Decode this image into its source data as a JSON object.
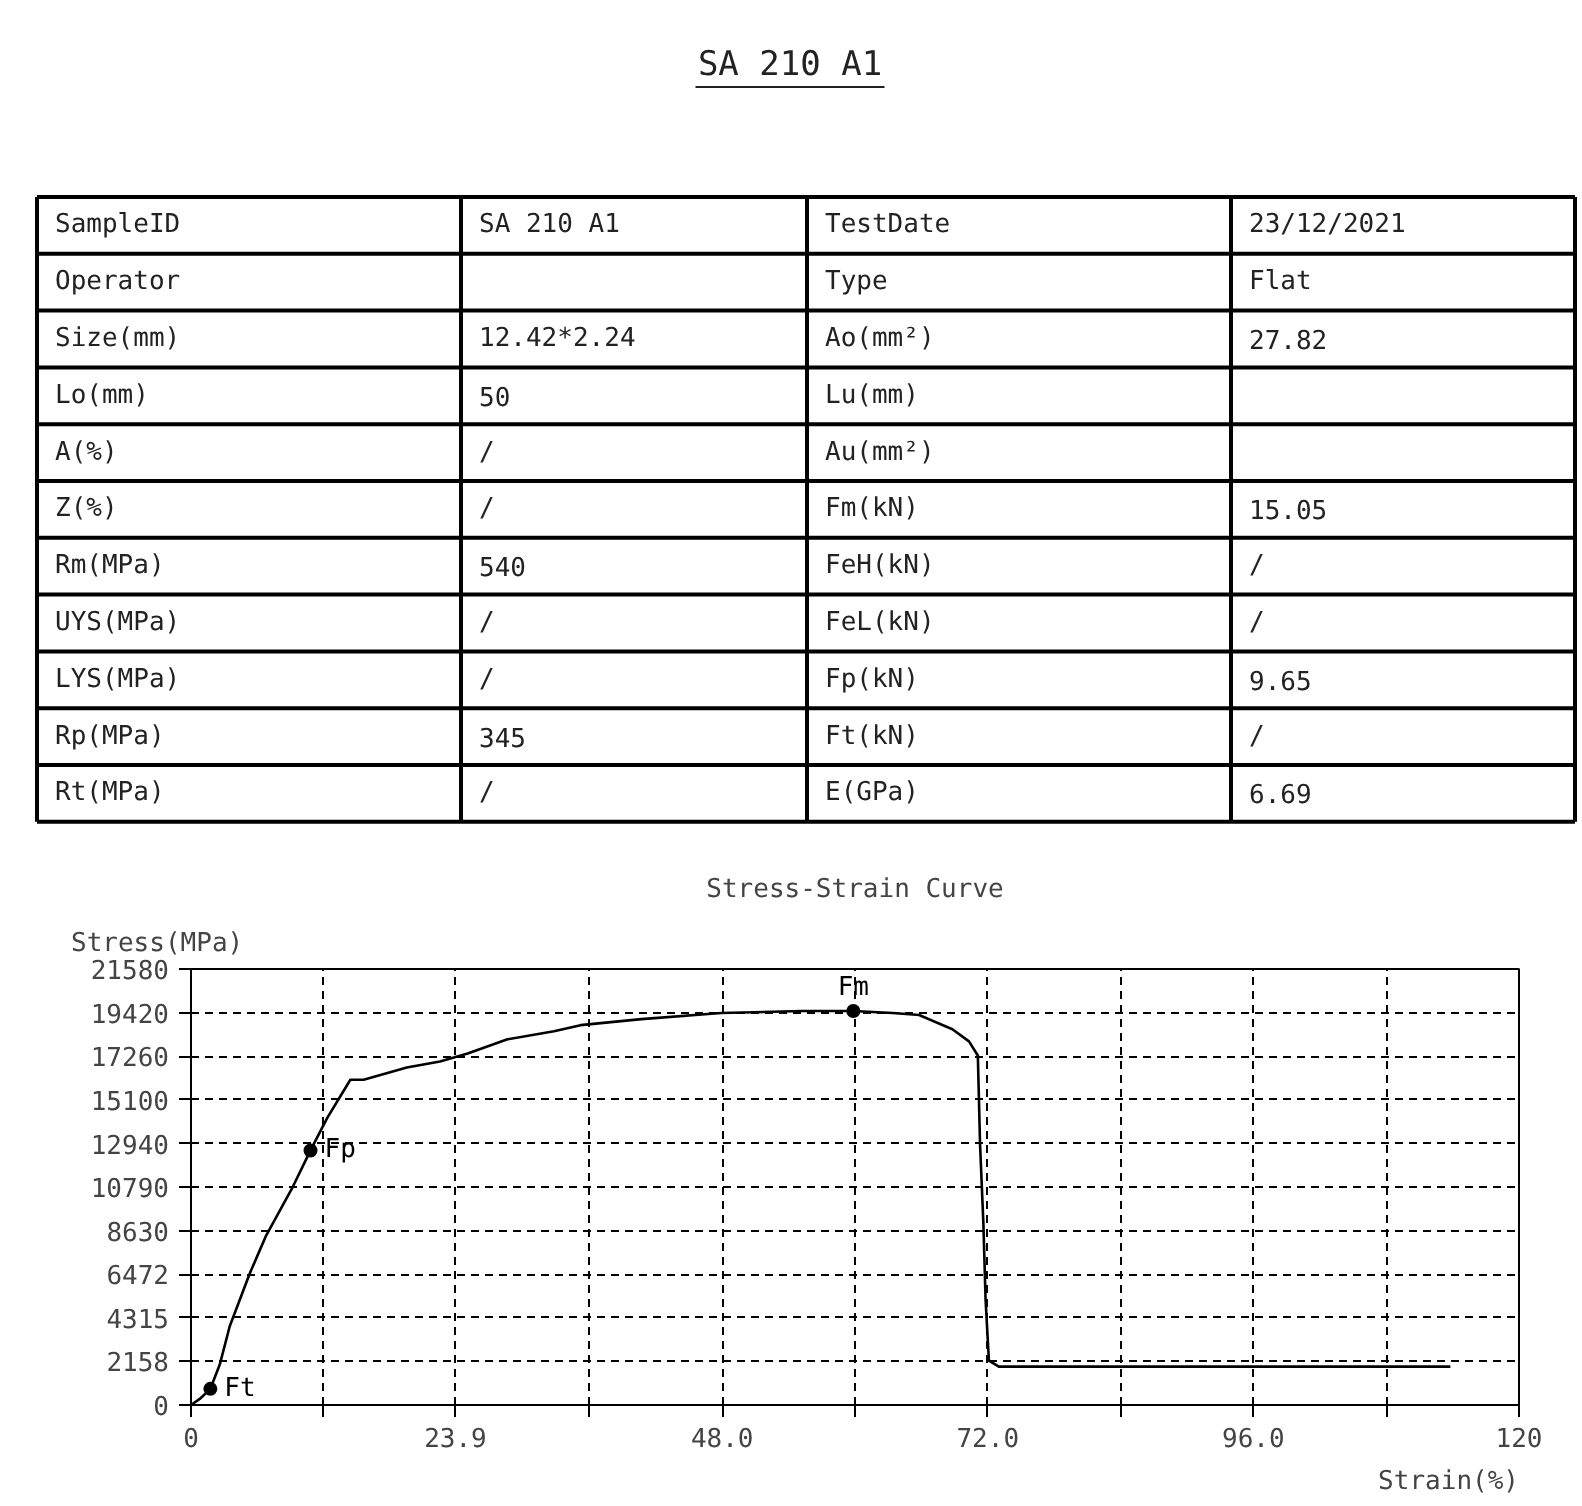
{
  "chart_data": [
    {
      "type": "other",
      "title": "SA 210 A1",
      "annotations": [
        "SampleID",
        "SA 210 A1",
        "TestDate",
        "23/12/2021",
        "Operator",
        null,
        "Type",
        "Flat",
        "Size(mm)",
        "12.42*2.24",
        "Ao(mm²)",
        "27.82",
        "Lo(mm)",
        "50",
        "Lu(mm)",
        null,
        "A(%)",
        "/",
        "Au(mm²)",
        null,
        "Z(%)",
        "/",
        "Fm(kN)",
        "15.05",
        "Rm(MPa)",
        "540",
        "FeH(kN)",
        "/",
        "UYS(MPa)",
        "/",
        "FeL(kN)",
        "/",
        "LYS(MPa)",
        "/",
        "Fp(kN)",
        "9.65",
        "Rp(MPa)",
        "345",
        "Ft(kN)",
        "/",
        "Rt(MPa)",
        "/",
        "E(GPa)",
        "6.69"
      ]
    },
    {
      "type": "line",
      "title": "Stress-Strain Curve",
      "xlabel": "Strain(%)",
      "ylabel": "Stress(MPa)",
      "color": "#000000",
      "line_style": "solid",
      "grid": true,
      "x": [
        0,
        0.79,
        1.75,
        2.6,
        3.5,
        5.3,
        6.8,
        9.2,
        10.8,
        12.3,
        14.4,
        15.6,
        19.5,
        22.5,
        25.0,
        28.6,
        32.8,
        35.2,
        40.7,
        47.9,
        55.2,
        59.85,
        63.4,
        65.8,
        68.8,
        70.3,
        71.1,
        71.3,
        71.6,
        71.8,
        72.1,
        73.0,
        113.8
      ],
      "values": [
        0,
        300,
        800,
        2000,
        3900,
        6500,
        8400,
        10800,
        12600,
        14200,
        16100,
        16100,
        16700,
        17000,
        17400,
        18100,
        18500,
        18800,
        19100,
        19400,
        19500,
        19500,
        19400,
        19300,
        18600,
        18000,
        17300,
        12900,
        9000,
        5200,
        2200,
        1900,
        1900
      ],
      "xlim": [
        0,
        120
      ],
      "ylim": [
        0,
        21580
      ],
      "xticks": [
        0,
        {
          "value": 12,
          "label": null
        },
        23.9,
        {
          "value": 36,
          "label": null
        },
        {
          "value": 48,
          "label": "48.0"
        },
        {
          "value": 60,
          "label": null
        },
        {
          "value": 72,
          "label": "72.0"
        },
        {
          "value": 84,
          "label": null
        },
        {
          "value": 96,
          "label": "96.0"
        },
        {
          "value": 108,
          "label": null
        },
        120
      ],
      "yticks": [
        0,
        2158,
        4315,
        6472,
        8630,
        10790,
        12940,
        15100,
        17260,
        19420,
        21580
      ],
      "annotations": [
        {
          "text": "Ft",
          "x": 1.75,
          "y": 800
        },
        {
          "text": "Fp",
          "x": 10.8,
          "y": 12600
        },
        {
          "text": "Fm",
          "x": 59.85,
          "y": 19500
        }
      ]
    }
  ]
}
